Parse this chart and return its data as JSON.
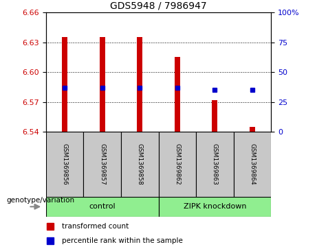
{
  "title": "GDS5948 / 7986947",
  "samples": [
    "GSM1369856",
    "GSM1369857",
    "GSM1369858",
    "GSM1369862",
    "GSM1369863",
    "GSM1369864"
  ],
  "bar_bottom": 6.54,
  "bar_tops": [
    6.635,
    6.635,
    6.635,
    6.615,
    6.572,
    6.545
  ],
  "pct_ranks": [
    37,
    37,
    37,
    37,
    35,
    35
  ],
  "ylim_left": [
    6.54,
    6.66
  ],
  "ylim_right": [
    0,
    100
  ],
  "yticks_left": [
    6.54,
    6.57,
    6.6,
    6.63,
    6.66
  ],
  "yticks_right": [
    0,
    25,
    50,
    75,
    100
  ],
  "dotted_lines": [
    6.57,
    6.6,
    6.63
  ],
  "bar_color": "#CC0000",
  "dot_color": "#0000CC",
  "bar_width": 0.15,
  "left_tick_color": "#CC0000",
  "right_tick_color": "#0000CC",
  "group_defs": [
    {
      "name": "control",
      "start": 0,
      "end": 2
    },
    {
      "name": "ZIPK knockdown",
      "start": 3,
      "end": 5
    }
  ],
  "group_color": "#90EE90",
  "sample_cell_color": "#C8C8C8",
  "legend_items": [
    "transformed count",
    "percentile rank within the sample"
  ],
  "legend_colors": [
    "#CC0000",
    "#0000CC"
  ],
  "xlabel_group": "genotype/variation"
}
